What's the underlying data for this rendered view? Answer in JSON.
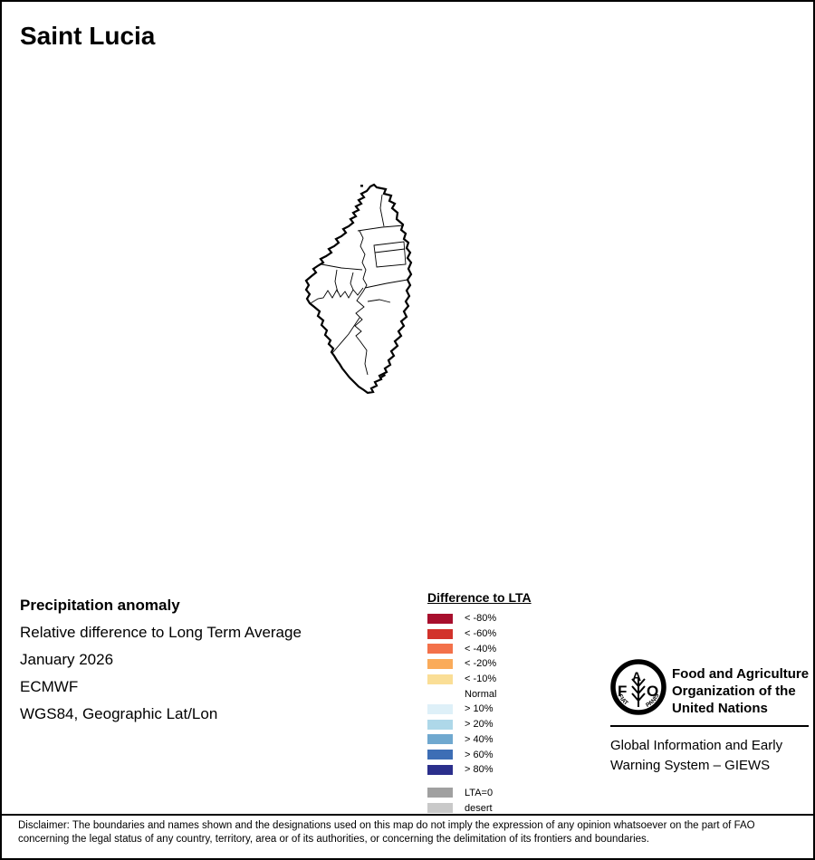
{
  "page": {
    "title": "Saint Lucia"
  },
  "info": {
    "heading": "Precipitation anomaly",
    "subtitle": "Relative difference to Long Term Average",
    "period": "January 2026",
    "source": "ECMWF",
    "projection": "WGS84, Geographic Lat/Lon"
  },
  "legend": {
    "title": "Difference to LTA",
    "items": [
      {
        "label": "< -80%",
        "color": "#A80F2D"
      },
      {
        "label": "< -60%",
        "color": "#D2322B"
      },
      {
        "label": "< -40%",
        "color": "#F3714A"
      },
      {
        "label": "< -20%",
        "color": "#FAAB5A"
      },
      {
        "label": "< -10%",
        "color": "#FADE96"
      },
      {
        "label": "Normal",
        "color": "#FFFFFF"
      },
      {
        "label": "> 10%",
        "color": "#DEF0F8"
      },
      {
        "label": "> 20%",
        "color": "#AED8E9"
      },
      {
        "label": "> 40%",
        "color": "#6FA8CF"
      },
      {
        "label": "> 60%",
        "color": "#3D6EB5"
      },
      {
        "label": "> 80%",
        "color": "#2B2F8C"
      }
    ],
    "extra_items": [
      {
        "label": "LTA=0",
        "color": "#A0A0A0"
      },
      {
        "label": "desert",
        "color": "#C9C9C9"
      }
    ]
  },
  "fao": {
    "logo": {
      "f": "F",
      "a": "A",
      "o": "O",
      "fiat": "FIAT",
      "panis": "PANIS"
    },
    "org_line1": "Food and Agriculture",
    "org_line2": "Organization of the",
    "org_line3": "United Nations",
    "giews_line1": "Global Information and Early",
    "giews_line2": "Warning System – GIEWS"
  },
  "disclaimer": {
    "line1": "Disclaimer: The boundaries and names shown and the designations used on this map do not imply the expression of any opinion whatsoever on the part of FAO",
    "line2": "concerning the legal status of any country, territory, area or of its authorities, or concerning the delimitation of its frontiers and boundaries."
  }
}
